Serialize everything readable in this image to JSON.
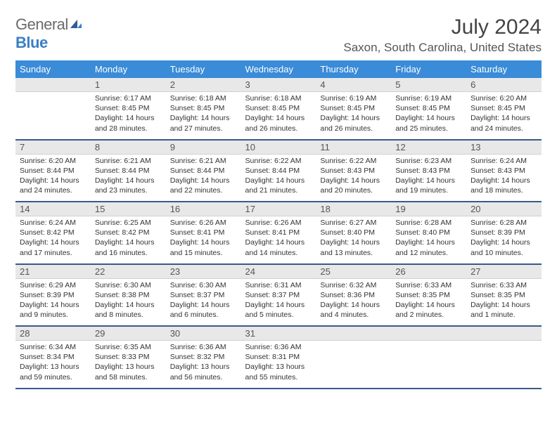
{
  "logo": {
    "word1": "General",
    "word2": "Blue"
  },
  "title": "July 2024",
  "location": "Saxon, South Carolina, United States",
  "colors": {
    "header_bg": "#3a8bd8",
    "header_text": "#ffffff",
    "daynum_bg": "#e8e8e8",
    "row_border": "#3a5a8a",
    "logo_gray": "#6b6b6b",
    "logo_blue": "#3a7fc4"
  },
  "weekdays": [
    "Sunday",
    "Monday",
    "Tuesday",
    "Wednesday",
    "Thursday",
    "Friday",
    "Saturday"
  ],
  "weeks": [
    {
      "nums": [
        "",
        "1",
        "2",
        "3",
        "4",
        "5",
        "6"
      ],
      "cells": [
        "",
        "Sunrise: 6:17 AM\nSunset: 8:45 PM\nDaylight: 14 hours and 28 minutes.",
        "Sunrise: 6:18 AM\nSunset: 8:45 PM\nDaylight: 14 hours and 27 minutes.",
        "Sunrise: 6:18 AM\nSunset: 8:45 PM\nDaylight: 14 hours and 26 minutes.",
        "Sunrise: 6:19 AM\nSunset: 8:45 PM\nDaylight: 14 hours and 26 minutes.",
        "Sunrise: 6:19 AM\nSunset: 8:45 PM\nDaylight: 14 hours and 25 minutes.",
        "Sunrise: 6:20 AM\nSunset: 8:45 PM\nDaylight: 14 hours and 24 minutes."
      ]
    },
    {
      "nums": [
        "7",
        "8",
        "9",
        "10",
        "11",
        "12",
        "13"
      ],
      "cells": [
        "Sunrise: 6:20 AM\nSunset: 8:44 PM\nDaylight: 14 hours and 24 minutes.",
        "Sunrise: 6:21 AM\nSunset: 8:44 PM\nDaylight: 14 hours and 23 minutes.",
        "Sunrise: 6:21 AM\nSunset: 8:44 PM\nDaylight: 14 hours and 22 minutes.",
        "Sunrise: 6:22 AM\nSunset: 8:44 PM\nDaylight: 14 hours and 21 minutes.",
        "Sunrise: 6:22 AM\nSunset: 8:43 PM\nDaylight: 14 hours and 20 minutes.",
        "Sunrise: 6:23 AM\nSunset: 8:43 PM\nDaylight: 14 hours and 19 minutes.",
        "Sunrise: 6:24 AM\nSunset: 8:43 PM\nDaylight: 14 hours and 18 minutes."
      ]
    },
    {
      "nums": [
        "14",
        "15",
        "16",
        "17",
        "18",
        "19",
        "20"
      ],
      "cells": [
        "Sunrise: 6:24 AM\nSunset: 8:42 PM\nDaylight: 14 hours and 17 minutes.",
        "Sunrise: 6:25 AM\nSunset: 8:42 PM\nDaylight: 14 hours and 16 minutes.",
        "Sunrise: 6:26 AM\nSunset: 8:41 PM\nDaylight: 14 hours and 15 minutes.",
        "Sunrise: 6:26 AM\nSunset: 8:41 PM\nDaylight: 14 hours and 14 minutes.",
        "Sunrise: 6:27 AM\nSunset: 8:40 PM\nDaylight: 14 hours and 13 minutes.",
        "Sunrise: 6:28 AM\nSunset: 8:40 PM\nDaylight: 14 hours and 12 minutes.",
        "Sunrise: 6:28 AM\nSunset: 8:39 PM\nDaylight: 14 hours and 10 minutes."
      ]
    },
    {
      "nums": [
        "21",
        "22",
        "23",
        "24",
        "25",
        "26",
        "27"
      ],
      "cells": [
        "Sunrise: 6:29 AM\nSunset: 8:39 PM\nDaylight: 14 hours and 9 minutes.",
        "Sunrise: 6:30 AM\nSunset: 8:38 PM\nDaylight: 14 hours and 8 minutes.",
        "Sunrise: 6:30 AM\nSunset: 8:37 PM\nDaylight: 14 hours and 6 minutes.",
        "Sunrise: 6:31 AM\nSunset: 8:37 PM\nDaylight: 14 hours and 5 minutes.",
        "Sunrise: 6:32 AM\nSunset: 8:36 PM\nDaylight: 14 hours and 4 minutes.",
        "Sunrise: 6:33 AM\nSunset: 8:35 PM\nDaylight: 14 hours and 2 minutes.",
        "Sunrise: 6:33 AM\nSunset: 8:35 PM\nDaylight: 14 hours and 1 minute."
      ]
    },
    {
      "nums": [
        "28",
        "29",
        "30",
        "31",
        "",
        "",
        ""
      ],
      "cells": [
        "Sunrise: 6:34 AM\nSunset: 8:34 PM\nDaylight: 13 hours and 59 minutes.",
        "Sunrise: 6:35 AM\nSunset: 8:33 PM\nDaylight: 13 hours and 58 minutes.",
        "Sunrise: 6:36 AM\nSunset: 8:32 PM\nDaylight: 13 hours and 56 minutes.",
        "Sunrise: 6:36 AM\nSunset: 8:31 PM\nDaylight: 13 hours and 55 minutes.",
        "",
        "",
        ""
      ]
    }
  ]
}
